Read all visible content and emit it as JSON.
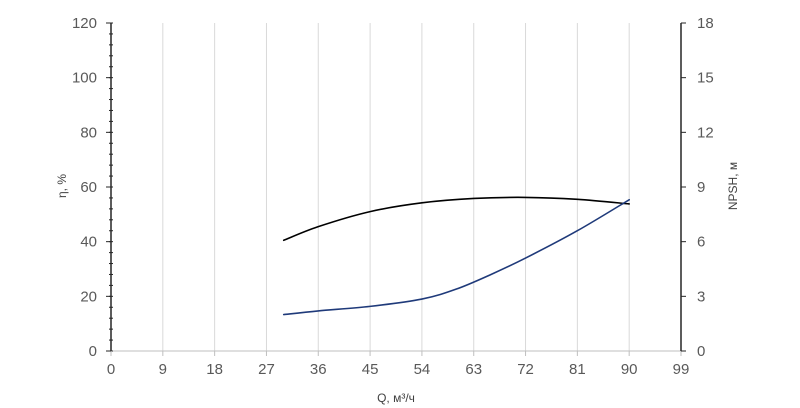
{
  "chart_data": {
    "type": "line",
    "title": "",
    "xlabel": "Q, м³/ч",
    "ylabel_left": "η, %",
    "ylabel_right": "NPSH, м",
    "xlim": [
      0,
      99
    ],
    "ylim_left": [
      0,
      120
    ],
    "ylim_right": [
      0,
      18
    ],
    "x_ticks": [
      0,
      9,
      18,
      27,
      36,
      45,
      54,
      63,
      72,
      81,
      90,
      99
    ],
    "y_left_ticks": [
      0,
      20,
      40,
      60,
      80,
      100,
      120
    ],
    "y_right_ticks": [
      0,
      3,
      6,
      9,
      12,
      15,
      18
    ],
    "grid": "vertical",
    "legend": "none",
    "series": [
      {
        "axis": "left",
        "color": "#000000",
        "x": [
          30,
          36,
          45,
          54,
          63,
          72,
          81,
          90
        ],
        "y": [
          40.5,
          45.5,
          51,
          54.2,
          55.8,
          56.2,
          55.5,
          53.8
        ]
      },
      {
        "axis": "right",
        "color": "#1f3a7a",
        "x": [
          30,
          36,
          45,
          54,
          60,
          66,
          72,
          81,
          90
        ],
        "y": [
          2.0,
          2.2,
          2.45,
          2.85,
          3.4,
          4.2,
          5.1,
          6.6,
          8.3
        ]
      }
    ]
  }
}
